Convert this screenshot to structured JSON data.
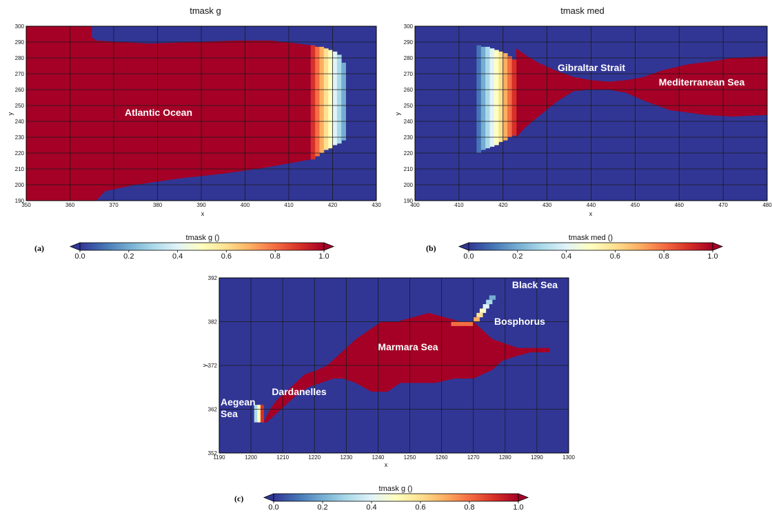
{
  "colors": {
    "ocean": "#a50026",
    "land": "#313695",
    "grid": "#1a1a1a"
  },
  "colorbar_scale": [
    "#313695",
    "#4575b4",
    "#74add1",
    "#abd9e9",
    "#e0f3f8",
    "#ffffbf",
    "#fee090",
    "#fdae61",
    "#f46d43",
    "#d73027",
    "#a50026"
  ],
  "chart_data": [
    {
      "type": "heatmap",
      "panel_label": "(a)",
      "title": "tmask g",
      "xlabel": "x",
      "ylabel": "y",
      "xlim": [
        350,
        430
      ],
      "ylim": [
        190,
        300
      ],
      "xticks": [
        350,
        360,
        370,
        380,
        390,
        400,
        410,
        420,
        430
      ],
      "yticks": [
        190,
        200,
        210,
        220,
        230,
        240,
        250,
        260,
        270,
        280,
        290,
        300
      ],
      "colorbar": {
        "label": "tmask g ()",
        "ticks": [
          "0.0",
          "0.2",
          "0.4",
          "0.6",
          "0.8",
          "1.0"
        ],
        "range": [
          0,
          1
        ]
      },
      "annotations": [
        {
          "text": "Atlantic Ocean",
          "x": 387,
          "y": 255
        }
      ],
      "ocean_upper": [
        [
          350,
          300
        ],
        [
          365,
          300
        ],
        [
          365,
          293
        ],
        [
          380,
          289
        ],
        [
          395,
          291
        ],
        [
          405,
          290
        ],
        [
          413,
          288
        ],
        [
          416,
          287
        ],
        [
          419,
          286
        ],
        [
          421,
          284
        ],
        [
          422,
          281
        ],
        [
          423,
          277
        ],
        [
          423,
          228
        ],
        [
          422,
          225
        ],
        [
          421,
          223
        ],
        [
          420,
          221
        ],
        [
          418,
          220
        ],
        [
          416,
          219
        ],
        [
          413,
          217
        ],
        [
          400,
          209
        ],
        [
          390,
          204
        ],
        [
          380,
          199
        ],
        [
          370,
          194
        ],
        [
          366,
          190
        ],
        [
          350,
          190
        ]
      ],
      "ocean_lower": [
        [
          415,
          216
        ],
        [
          350,
          190
        ]
      ],
      "ramp_columns": [
        {
          "x0": 415,
          "x1": 416,
          "v": 0.9
        },
        {
          "x0": 416,
          "x1": 417,
          "v": 0.8
        },
        {
          "x0": 417,
          "x1": 418,
          "v": 0.7
        },
        {
          "x0": 418,
          "x1": 419,
          "v": 0.6
        },
        {
          "x0": 419,
          "x1": 420,
          "v": 0.5
        },
        {
          "x0": 420,
          "x1": 421,
          "v": 0.4
        },
        {
          "x0": 421,
          "x1": 422,
          "v": 0.3
        },
        {
          "x0": 422,
          "x1": 423,
          "v": 0.2
        }
      ]
    },
    {
      "type": "heatmap",
      "panel_label": "(b)",
      "title": "tmask med",
      "xlabel": "x",
      "ylabel": "y",
      "xlim": [
        400,
        480
      ],
      "ylim": [
        190,
        300
      ],
      "xticks": [
        400,
        410,
        420,
        430,
        440,
        450,
        460,
        470,
        480
      ],
      "yticks": [
        190,
        200,
        210,
        220,
        230,
        240,
        250,
        260,
        270,
        280,
        290,
        300
      ],
      "colorbar": {
        "label": "tmask med ()",
        "ticks": [
          "0.0",
          "0.2",
          "0.4",
          "0.6",
          "0.8",
          "1.0"
        ],
        "range": [
          0,
          1
        ]
      },
      "annotations": [
        {
          "text": "Gibraltar Strait",
          "x": 438,
          "y": 267
        },
        {
          "text": "Mediterranean Sea",
          "x": 465,
          "y": 257
        }
      ],
      "ramp_columns": [
        {
          "x0": 414,
          "x1": 415,
          "v": 0.1
        },
        {
          "x0": 415,
          "x1": 416,
          "v": 0.2
        },
        {
          "x0": 416,
          "x1": 417,
          "v": 0.3
        },
        {
          "x0": 417,
          "x1": 418,
          "v": 0.4
        },
        {
          "x0": 418,
          "x1": 419,
          "v": 0.5
        },
        {
          "x0": 419,
          "x1": 420,
          "v": 0.6
        },
        {
          "x0": 420,
          "x1": 421,
          "v": 0.7
        },
        {
          "x0": 421,
          "x1": 422,
          "v": 0.8
        },
        {
          "x0": 422,
          "x1": 423,
          "v": 0.9
        }
      ]
    },
    {
      "type": "heatmap",
      "panel_label": "(c)",
      "xlabel": "x",
      "ylabel": "y",
      "xlim": [
        1190,
        1300
      ],
      "ylim": [
        352,
        392
      ],
      "xticks": [
        1190,
        1200,
        1210,
        1220,
        1230,
        1240,
        1250,
        1260,
        1270,
        1280,
        1290,
        1300
      ],
      "yticks": [
        352,
        362,
        372,
        382,
        392
      ],
      "colorbar": {
        "label": "tmask g ()",
        "ticks": [
          "0.0",
          "0.2",
          "0.4",
          "0.6",
          "0.8",
          "1.0"
        ],
        "range": [
          0,
          1
        ]
      },
      "annotations": [
        {
          "text": "Black Sea",
          "x": 1287,
          "y": 390
        },
        {
          "text": "Bosphorus",
          "x": 1281,
          "y": 382
        },
        {
          "text": "Marmara Sea",
          "x": 1245,
          "y": 376
        },
        {
          "text": "Dardanelles",
          "x": 1212,
          "y": 367
        },
        {
          "text": "Aegean",
          "x": 1195,
          "y": 363
        },
        {
          "text": "Sea",
          "x": 1195,
          "y": 361
        }
      ]
    }
  ]
}
